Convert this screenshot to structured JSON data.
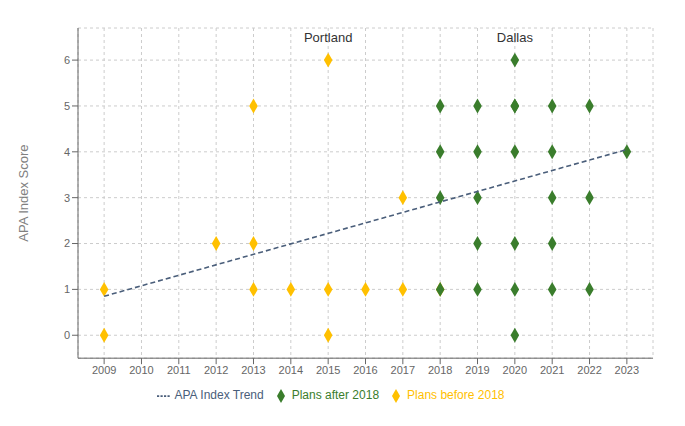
{
  "chart_data": {
    "type": "scatter",
    "y_label": "APA Index Score",
    "series": [
      {
        "name": "Plans before 2018",
        "type": "scatter",
        "color": "#FFC000",
        "marker": "diamond",
        "values": [
          [
            2009,
            0
          ],
          [
            2009,
            1
          ],
          [
            2012,
            2
          ],
          [
            2013,
            1
          ],
          [
            2013,
            2
          ],
          [
            2013,
            5
          ],
          [
            2014,
            1
          ],
          [
            2015,
            0
          ],
          [
            2015,
            1
          ],
          [
            2015,
            6
          ],
          [
            2016,
            1
          ],
          [
            2017,
            1
          ],
          [
            2017,
            3
          ],
          [
            2018,
            1
          ]
        ]
      },
      {
        "name": "Plans after 2018",
        "type": "scatter",
        "color": "#3A7D2C",
        "marker": "diamond",
        "values": [
          [
            2018,
            1
          ],
          [
            2018,
            3
          ],
          [
            2018,
            4
          ],
          [
            2018,
            5
          ],
          [
            2019,
            1
          ],
          [
            2019,
            2
          ],
          [
            2019,
            3
          ],
          [
            2019,
            4
          ],
          [
            2019,
            5
          ],
          [
            2020,
            0
          ],
          [
            2020,
            1
          ],
          [
            2020,
            2
          ],
          [
            2020,
            4
          ],
          [
            2020,
            5
          ],
          [
            2020,
            5
          ],
          [
            2020,
            6
          ],
          [
            2021,
            1
          ],
          [
            2021,
            2
          ],
          [
            2021,
            3
          ],
          [
            2021,
            4
          ],
          [
            2021,
            5
          ],
          [
            2022,
            1
          ],
          [
            2022,
            3
          ],
          [
            2022,
            5
          ],
          [
            2023,
            4
          ]
        ]
      },
      {
        "name": "APA Index Trend",
        "type": "line",
        "color": "#4A5E7A",
        "line_style": "dashed",
        "values": [
          [
            2009,
            0.85
          ],
          [
            2023,
            4.05
          ]
        ]
      }
    ],
    "annotations": [
      {
        "text": "Portland",
        "x": 2015,
        "y": 6.28
      },
      {
        "text": "Dallas",
        "x": 2020,
        "y": 6.28
      }
    ],
    "xlim": [
      2008.3,
      2023.7
    ],
    "ylim": [
      -0.5,
      6.7
    ],
    "xticks": [
      2009,
      2010,
      2011,
      2012,
      2013,
      2014,
      2015,
      2016,
      2017,
      2018,
      2019,
      2020,
      2021,
      2022,
      2023
    ],
    "yticks": [
      0,
      1,
      2,
      3,
      4,
      5,
      6
    ],
    "grid": true,
    "legend": "bottom"
  }
}
